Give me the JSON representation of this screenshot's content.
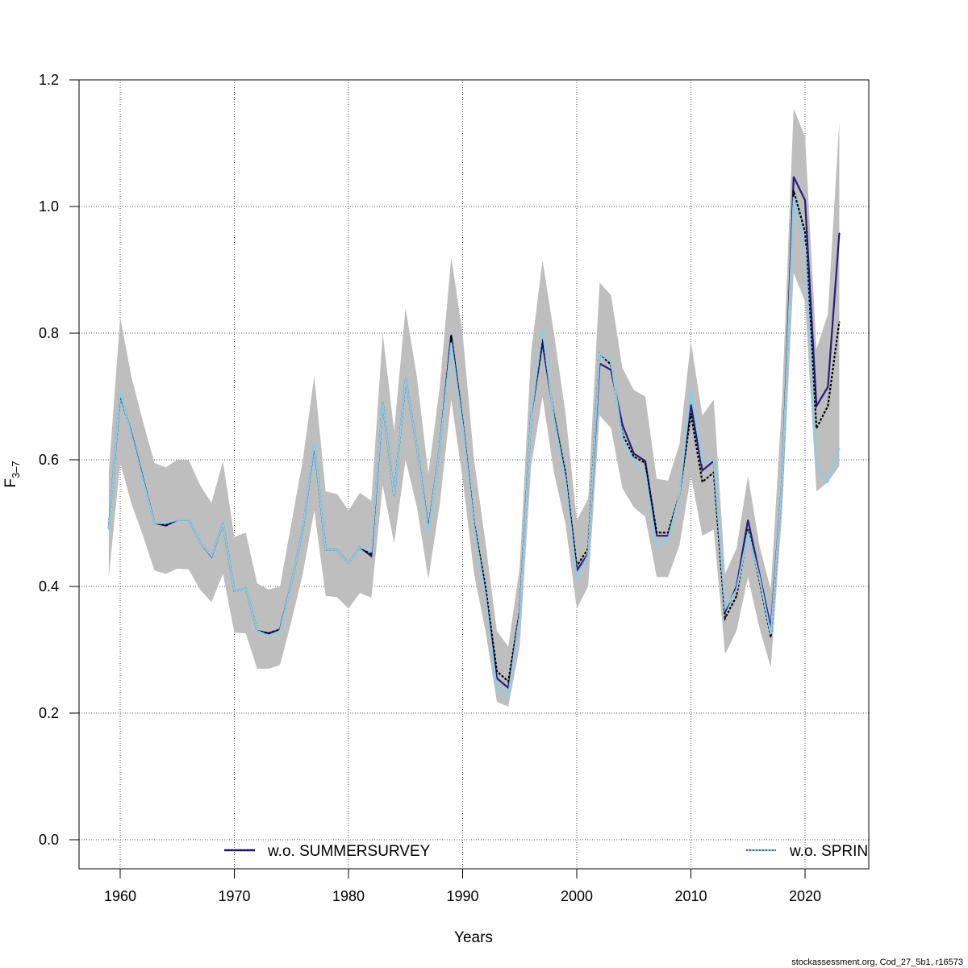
{
  "chart_data": {
    "type": "line",
    "title": "",
    "xlabel": "Years",
    "ylabel": "F",
    "ylabel_subscript": "3–7",
    "xlim": [
      1956.4,
      2025.6
    ],
    "ylim": [
      -0.046,
      1.2
    ],
    "grid": true,
    "x_ticks": [
      1960,
      1970,
      1980,
      1990,
      2000,
      2010,
      2020
    ],
    "x_tick_labels": [
      "1960",
      "1970",
      "1980",
      "1990",
      "2000",
      "2010",
      "2020"
    ],
    "y_ticks": [
      0.0,
      0.2,
      0.4,
      0.6,
      0.8,
      1.0,
      1.2
    ],
    "y_tick_labels": [
      "0.0",
      "0.2",
      "0.4",
      "0.6",
      "0.8",
      "1.0",
      "1.2"
    ],
    "x": [
      1959,
      1960,
      1961,
      1962,
      1963,
      1964,
      1965,
      1966,
      1967,
      1968,
      1969,
      1970,
      1971,
      1972,
      1973,
      1974,
      1975,
      1976,
      1977,
      1978,
      1979,
      1980,
      1981,
      1982,
      1983,
      1984,
      1985,
      1986,
      1987,
      1988,
      1989,
      1990,
      1991,
      1992,
      1993,
      1994,
      1995,
      1996,
      1997,
      1998,
      1999,
      2000,
      2001,
      2002,
      2003,
      2004,
      2005,
      2006,
      2007,
      2008,
      2009,
      2010,
      2011,
      2012,
      2013,
      2014,
      2015,
      2016,
      2017,
      2018,
      2019,
      2020,
      2021,
      2022,
      2023
    ],
    "band": {
      "name": "confidence interval",
      "color": "#bebebe",
      "lower": [
        0.415,
        0.595,
        0.53,
        0.48,
        0.425,
        0.42,
        0.428,
        0.427,
        0.395,
        0.375,
        0.42,
        0.327,
        0.326,
        0.27,
        0.27,
        0.276,
        0.345,
        0.42,
        0.52,
        0.385,
        0.383,
        0.365,
        0.39,
        0.382,
        0.56,
        0.468,
        0.6,
        0.525,
        0.412,
        0.53,
        0.695,
        0.57,
        0.42,
        0.33,
        0.218,
        0.21,
        0.305,
        0.59,
        0.7,
        0.58,
        0.5,
        0.365,
        0.4,
        0.67,
        0.65,
        0.555,
        0.525,
        0.51,
        0.415,
        0.415,
        0.465,
        0.575,
        0.48,
        0.49,
        0.293,
        0.33,
        0.415,
        0.335,
        0.272,
        0.52,
        0.895,
        0.85,
        0.55,
        0.565,
        0.59
      ],
      "upper": [
        0.58,
        0.825,
        0.73,
        0.66,
        0.595,
        0.588,
        0.6,
        0.6,
        0.56,
        0.532,
        0.598,
        0.478,
        0.485,
        0.405,
        0.395,
        0.4,
        0.5,
        0.6,
        0.732,
        0.55,
        0.546,
        0.52,
        0.548,
        0.535,
        0.8,
        0.645,
        0.84,
        0.73,
        0.578,
        0.715,
        0.92,
        0.8,
        0.6,
        0.47,
        0.33,
        0.305,
        0.43,
        0.77,
        0.915,
        0.8,
        0.675,
        0.505,
        0.538,
        0.88,
        0.86,
        0.745,
        0.71,
        0.7,
        0.57,
        0.567,
        0.625,
        0.787,
        0.67,
        0.695,
        0.42,
        0.46,
        0.575,
        0.465,
        0.395,
        0.7,
        1.155,
        1.11,
        0.775,
        0.83,
        1.135
      ]
    },
    "series": [
      {
        "name": "base",
        "legend": false,
        "color": "#000000",
        "style": "dashed",
        "values": [
          0.492,
          0.703,
          0.64,
          0.57,
          0.5,
          0.497,
          0.505,
          0.505,
          0.47,
          0.448,
          0.5,
          0.393,
          0.397,
          0.33,
          0.326,
          0.332,
          0.405,
          0.49,
          0.625,
          0.458,
          0.458,
          0.437,
          0.462,
          0.45,
          0.69,
          0.543,
          0.727,
          0.62,
          0.49,
          0.62,
          0.795,
          0.66,
          0.5,
          0.4,
          0.266,
          0.25,
          0.36,
          0.67,
          0.79,
          0.67,
          0.58,
          0.432,
          0.46,
          0.768,
          0.75,
          0.64,
          0.605,
          0.595,
          0.485,
          0.485,
          0.545,
          0.673,
          0.565,
          0.58,
          0.35,
          0.385,
          0.49,
          0.41,
          0.32,
          0.57,
          1.025,
          0.96,
          0.65,
          0.685,
          0.818
        ]
      },
      {
        "name": "w.o. SUMMERSURVEY",
        "legend": true,
        "color": "#2b1a7d",
        "style": "solid",
        "values": [
          0.492,
          0.705,
          0.64,
          0.57,
          0.5,
          0.496,
          0.505,
          0.505,
          0.47,
          0.447,
          0.5,
          0.393,
          0.397,
          0.33,
          0.326,
          0.332,
          0.405,
          0.49,
          0.625,
          0.458,
          0.458,
          0.437,
          0.462,
          0.448,
          0.69,
          0.543,
          0.727,
          0.62,
          0.49,
          0.62,
          0.797,
          0.66,
          0.497,
          0.39,
          0.255,
          0.24,
          0.36,
          0.67,
          0.785,
          0.67,
          0.575,
          0.425,
          0.452,
          0.752,
          0.742,
          0.655,
          0.61,
          0.598,
          0.48,
          0.48,
          0.545,
          0.687,
          0.583,
          0.598,
          0.36,
          0.4,
          0.505,
          0.42,
          0.335,
          0.57,
          1.047,
          1.01,
          0.685,
          0.715,
          0.958
        ]
      },
      {
        "name": "w.o. SPRINGSURVEY",
        "legend": true,
        "legend_label_visible": "w.o. SPRIN",
        "color": "#87ceeb",
        "style": "solid",
        "values": [
          0.49,
          0.707,
          0.638,
          0.568,
          0.5,
          0.5,
          0.505,
          0.505,
          0.47,
          0.448,
          0.5,
          0.393,
          0.397,
          0.33,
          0.322,
          0.33,
          0.405,
          0.49,
          0.627,
          0.458,
          0.458,
          0.437,
          0.462,
          0.455,
          0.69,
          0.543,
          0.727,
          0.62,
          0.487,
          0.62,
          0.785,
          0.655,
          0.495,
          0.385,
          0.238,
          0.228,
          0.355,
          0.67,
          0.805,
          0.665,
          0.57,
          0.415,
          0.45,
          0.768,
          0.755,
          0.635,
          0.598,
          0.58,
          0.465,
          0.475,
          0.545,
          0.71,
          0.595,
          0.6,
          0.365,
          0.395,
          0.485,
          0.415,
          0.325,
          0.57,
          1.015,
          0.935,
          0.59,
          0.565,
          0.618
        ]
      }
    ],
    "legend": {
      "placement": "bottom",
      "entries": [
        {
          "label": "w.o. SUMMERSURVEY",
          "color": "#2b1a7d"
        },
        {
          "label": "w.o. SPRIN",
          "color": "#87ceeb"
        }
      ]
    },
    "footer": "stockassessment.org, Cod_27_5b1, r16573"
  }
}
